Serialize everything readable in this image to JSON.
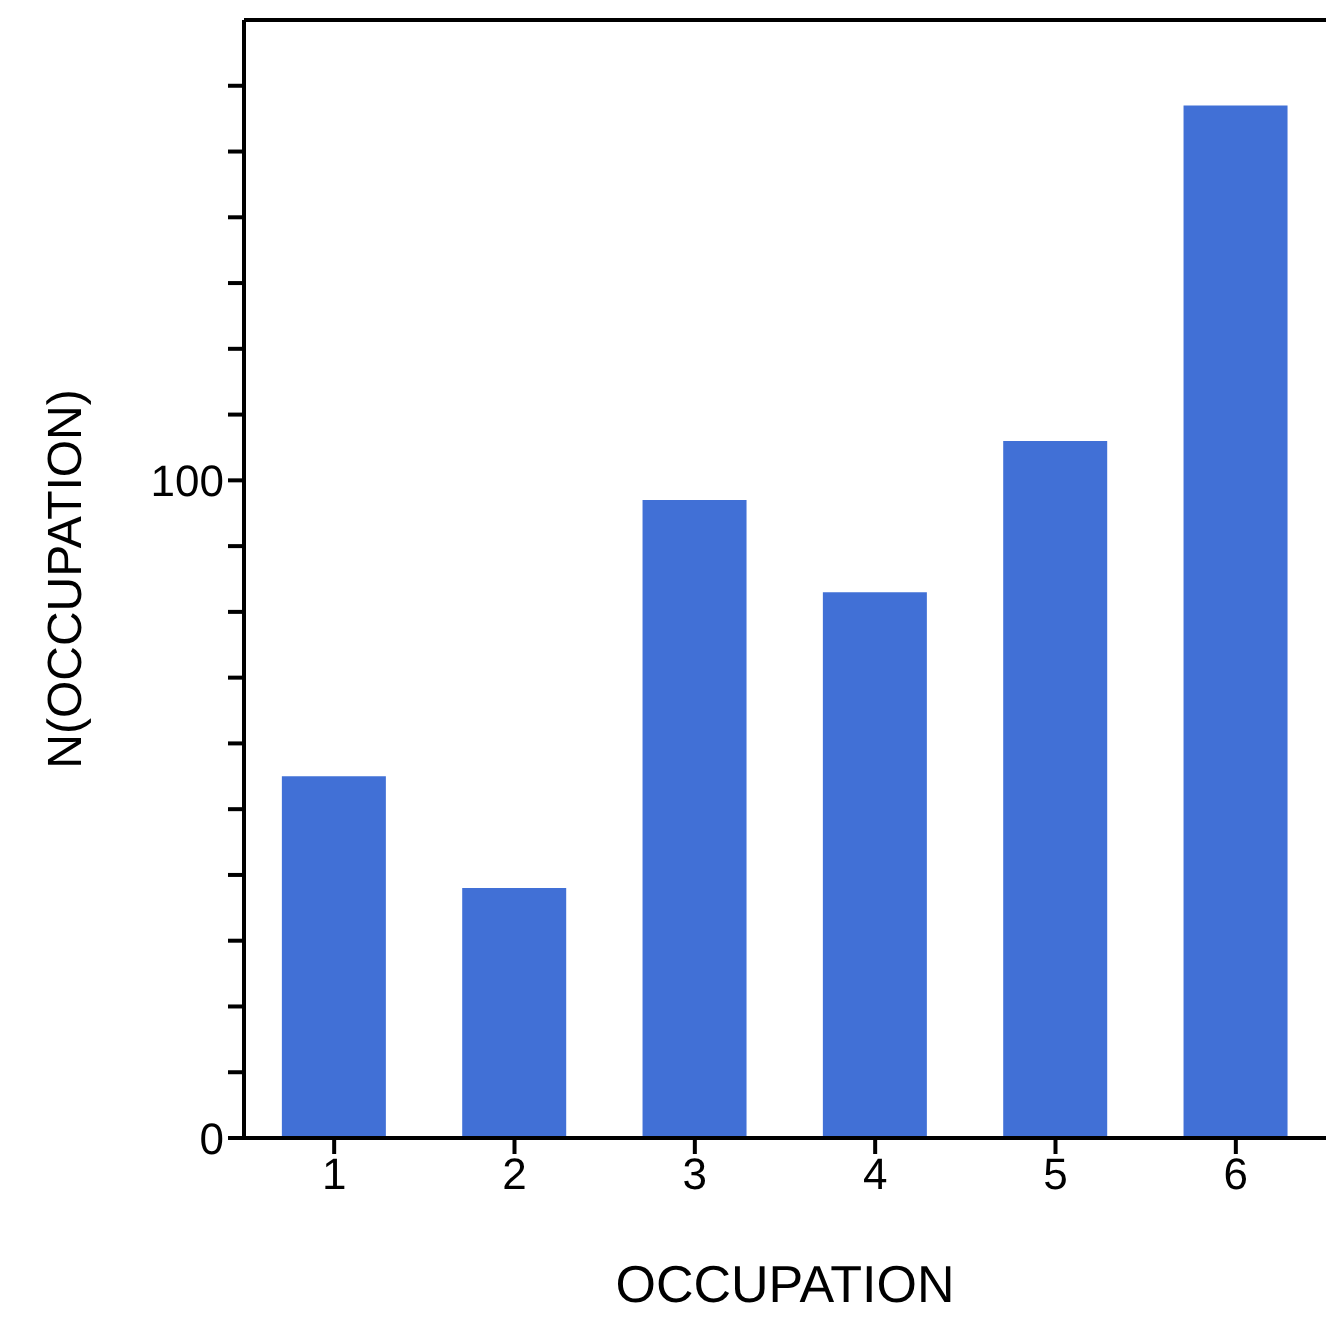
{
  "chart_data": {
    "type": "bar",
    "xlabel": "OCCUPATION",
    "ylabel": "N(OCCUPATION)",
    "categories": [
      "1",
      "2",
      "3",
      "4",
      "5",
      "6"
    ],
    "values": [
      55,
      38,
      97,
      83,
      106,
      157
    ],
    "color": "#4170d6",
    "ylim": [
      0,
      170
    ],
    "yticks": [
      0,
      {
        "value": 10,
        "label": null
      },
      {
        "value": 20,
        "label": null
      },
      {
        "value": 30,
        "label": null
      },
      {
        "value": 40,
        "label": null
      },
      {
        "value": 50,
        "label": null
      },
      {
        "value": 60,
        "label": null
      },
      {
        "value": 70,
        "label": null
      },
      {
        "value": 80,
        "label": null
      },
      {
        "value": 90,
        "label": null
      },
      100,
      {
        "value": 110,
        "label": null
      },
      {
        "value": 120,
        "label": null
      },
      {
        "value": 130,
        "label": null
      },
      {
        "value": 140,
        "label": null
      },
      {
        "value": 150,
        "label": null
      },
      {
        "value": 160,
        "label": null
      }
    ],
    "grid": false,
    "legend": false
  }
}
